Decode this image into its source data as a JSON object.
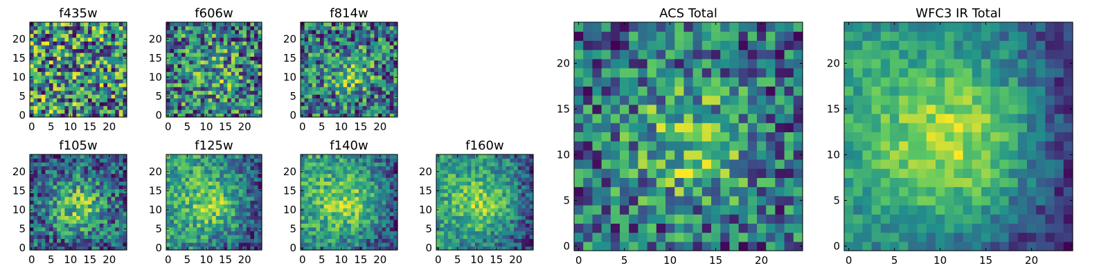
{
  "chart_data": [
    {
      "type": "heatmap",
      "title": "f435w",
      "xlabel": "",
      "ylabel": "",
      "size": 25,
      "xlim": [
        0,
        25
      ],
      "ylim": [
        0,
        25
      ],
      "xticks": [
        0,
        5,
        10,
        15,
        20
      ],
      "yticks": [
        0,
        5,
        10,
        15,
        20
      ],
      "pattern": "noise",
      "noise": 0.9,
      "base": 0.62,
      "peak": 0.05,
      "sigma": 6
    },
    {
      "type": "heatmap",
      "title": "f606w",
      "xlabel": "",
      "ylabel": "",
      "size": 25,
      "xlim": [
        0,
        25
      ],
      "ylim": [
        0,
        25
      ],
      "xticks": [
        0,
        5,
        10,
        15,
        20
      ],
      "yticks": [
        0,
        5,
        10,
        15,
        20
      ],
      "pattern": "noise-center",
      "noise": 0.75,
      "base": 0.6,
      "peak": 0.15,
      "sigma": 5
    },
    {
      "type": "heatmap",
      "title": "f814w",
      "xlabel": "",
      "ylabel": "",
      "size": 25,
      "xlim": [
        0,
        25
      ],
      "ylim": [
        0,
        25
      ],
      "xticks": [
        0,
        5,
        10,
        15,
        20
      ],
      "yticks": [
        0,
        5,
        10,
        15,
        20
      ],
      "pattern": "noise-center",
      "noise": 0.7,
      "base": 0.58,
      "peak": 0.3,
      "sigma": 4
    },
    {
      "type": "heatmap",
      "title": "f105w",
      "xlabel": "",
      "ylabel": "",
      "size": 25,
      "xlim": [
        0,
        25
      ],
      "ylim": [
        0,
        25
      ],
      "xticks": [
        0,
        5,
        10,
        15,
        20
      ],
      "yticks": [
        0,
        5,
        10,
        15,
        20
      ],
      "pattern": "galaxy",
      "noise": 0.5,
      "base": 0.55,
      "peak": 0.35,
      "sigma": 5
    },
    {
      "type": "heatmap",
      "title": "f125w",
      "xlabel": "",
      "ylabel": "",
      "size": 25,
      "xlim": [
        0,
        25
      ],
      "ylim": [
        0,
        25
      ],
      "xticks": [
        0,
        5,
        10,
        15,
        20
      ],
      "yticks": [
        0,
        5,
        10,
        15,
        20
      ],
      "pattern": "galaxy-left",
      "noise": 0.45,
      "base": 0.55,
      "peak": 0.35,
      "sigma": 6
    },
    {
      "type": "heatmap",
      "title": "f140w",
      "xlabel": "",
      "ylabel": "",
      "size": 25,
      "xlim": [
        0,
        25
      ],
      "ylim": [
        0,
        25
      ],
      "xticks": [
        0,
        5,
        10,
        15,
        20
      ],
      "yticks": [
        0,
        5,
        10,
        15,
        20
      ],
      "pattern": "galaxy-left",
      "noise": 0.45,
      "base": 0.55,
      "peak": 0.38,
      "sigma": 6
    },
    {
      "type": "heatmap",
      "title": "f160w",
      "xlabel": "",
      "ylabel": "",
      "size": 25,
      "xlim": [
        0,
        25
      ],
      "ylim": [
        0,
        25
      ],
      "xticks": [
        0,
        5,
        10,
        15,
        20
      ],
      "yticks": [
        0,
        5,
        10,
        15,
        20
      ],
      "pattern": "galaxy-left",
      "noise": 0.45,
      "base": 0.5,
      "peak": 0.4,
      "sigma": 6
    },
    {
      "type": "heatmap",
      "title": "ACS Total",
      "xlabel": "",
      "ylabel": "",
      "size": 25,
      "xlim": [
        0,
        25
      ],
      "ylim": [
        0,
        25
      ],
      "xticks": [
        0,
        5,
        10,
        15,
        20
      ],
      "yticks": [
        0,
        5,
        10,
        15,
        20
      ],
      "pattern": "noise-center",
      "noise": 0.4,
      "base": 0.7,
      "peak": 0.2,
      "sigma": 5
    },
    {
      "type": "heatmap",
      "title": "WFC3 IR Total",
      "xlabel": "",
      "ylabel": "",
      "size": 25,
      "xlim": [
        0,
        25
      ],
      "ylim": [
        0,
        25
      ],
      "xticks": [
        0,
        5,
        10,
        15,
        20
      ],
      "yticks": [
        0,
        5,
        10,
        15,
        20
      ],
      "pattern": "galaxy-left",
      "noise": 0.25,
      "base": 0.45,
      "peak": 0.45,
      "sigma": 7
    }
  ],
  "colormap": {
    "name": "viridis",
    "stops": [
      "#440154",
      "#3b528b",
      "#21918c",
      "#5ec962",
      "#fde725"
    ]
  }
}
